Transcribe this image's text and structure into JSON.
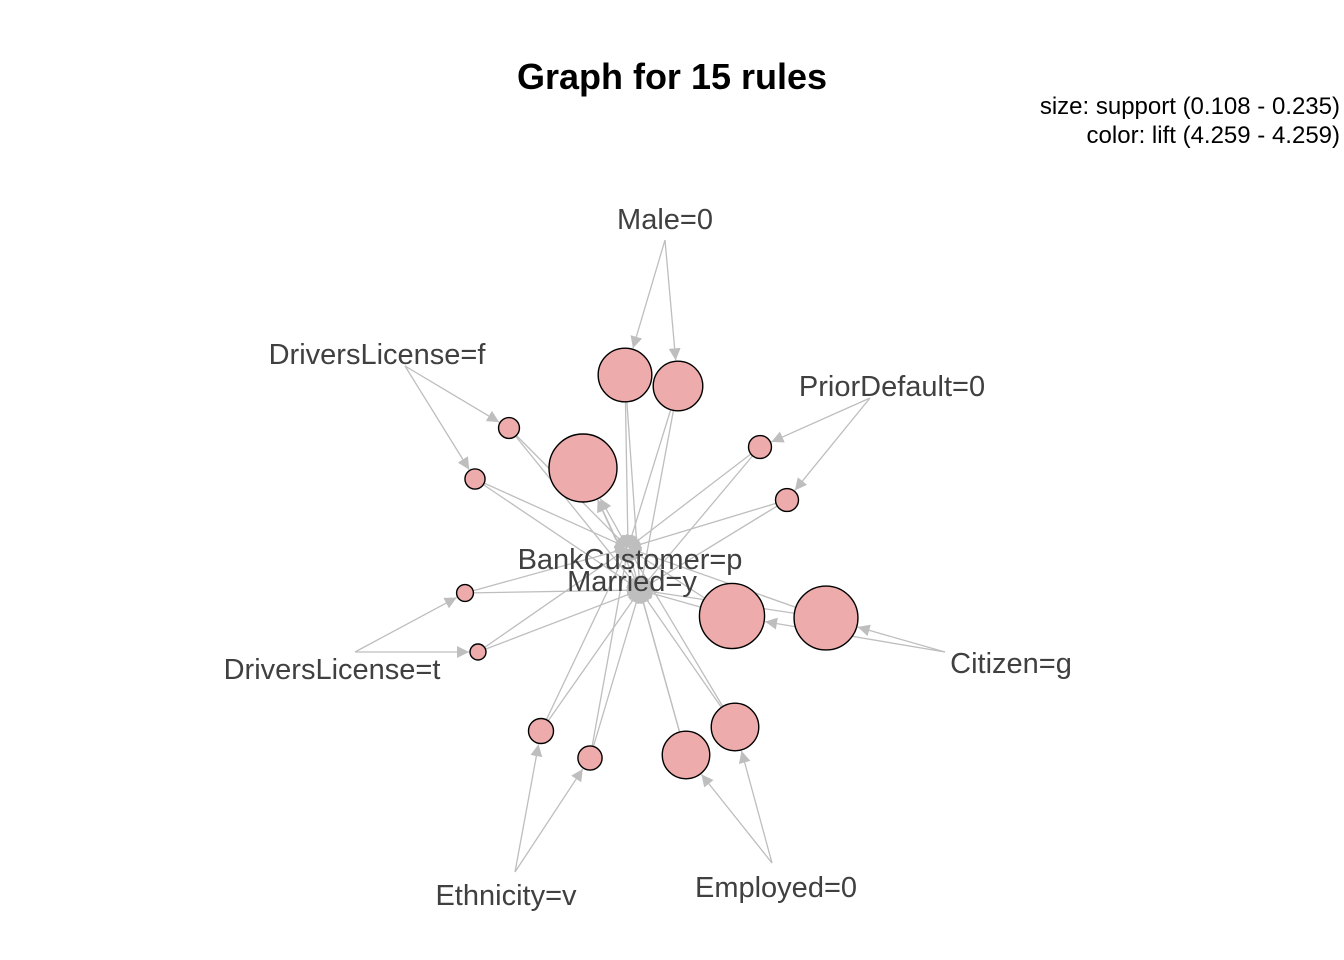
{
  "title": "Graph for 15 rules",
  "legend": {
    "size": "size: support (0.108 - 0.235)",
    "color": "color: lift (4.259 - 4.259)"
  },
  "colors": {
    "node_fill": "#eeabab",
    "node_stroke": "#000000",
    "edge": "#bebebe",
    "label": "#404040"
  },
  "items": [
    {
      "id": "male0",
      "label": "Male=0"
    },
    {
      "id": "dlf",
      "label": "DriversLicense=f"
    },
    {
      "id": "prior0",
      "label": "PriorDefault=0"
    },
    {
      "id": "bankp",
      "label": "BankCustomer=p"
    },
    {
      "id": "marriedy",
      "label": "Married=y"
    },
    {
      "id": "dlt",
      "label": "DriversLicense=t"
    },
    {
      "id": "citizeng",
      "label": "Citizen=g"
    },
    {
      "id": "ethv",
      "label": "Ethnicity=v"
    },
    {
      "id": "emp0",
      "label": "Employed=0"
    }
  ],
  "rules": [
    {
      "id": "r1",
      "support": 0.2,
      "lhs": [
        "male0"
      ],
      "rhs": [
        "bankp",
        "marriedy"
      ]
    },
    {
      "id": "r2",
      "support": 0.19,
      "lhs": [
        "male0"
      ],
      "rhs": [
        "bankp",
        "marriedy"
      ]
    },
    {
      "id": "r3",
      "support": 0.12,
      "lhs": [
        "dlf"
      ],
      "rhs": [
        "bankp",
        "marriedy"
      ]
    },
    {
      "id": "r4",
      "support": 0.118,
      "lhs": [
        "dlf"
      ],
      "rhs": [
        "bankp",
        "marriedy"
      ]
    },
    {
      "id": "r5",
      "support": 0.235,
      "lhs": [
        "bankp",
        "marriedy"
      ],
      "rhs": []
    },
    {
      "id": "r6",
      "support": 0.125,
      "lhs": [
        "prior0"
      ],
      "rhs": [
        "bankp",
        "marriedy"
      ]
    },
    {
      "id": "r7",
      "support": 0.125,
      "lhs": [
        "prior0"
      ],
      "rhs": [
        "bankp",
        "marriedy"
      ]
    },
    {
      "id": "r8",
      "support": 0.228,
      "lhs": [
        "citizeng"
      ],
      "rhs": [
        "bankp",
        "marriedy"
      ]
    },
    {
      "id": "r9",
      "support": 0.225,
      "lhs": [
        "citizeng"
      ],
      "rhs": [
        "bankp",
        "marriedy"
      ]
    },
    {
      "id": "r10",
      "support": 0.11,
      "lhs": [
        "dlt"
      ],
      "rhs": [
        "bankp",
        "marriedy"
      ]
    },
    {
      "id": "r11",
      "support": 0.108,
      "lhs": [
        "dlt"
      ],
      "rhs": [
        "bankp",
        "marriedy"
      ]
    },
    {
      "id": "r12",
      "support": 0.13,
      "lhs": [
        "ethv"
      ],
      "rhs": [
        "bankp",
        "marriedy"
      ]
    },
    {
      "id": "r13",
      "support": 0.128,
      "lhs": [
        "ethv"
      ],
      "rhs": [
        "bankp",
        "marriedy"
      ]
    },
    {
      "id": "r14",
      "support": 0.185,
      "lhs": [
        "emp0"
      ],
      "rhs": [
        "bankp",
        "marriedy"
      ]
    },
    {
      "id": "r15",
      "support": 0.185,
      "lhs": [
        "emp0"
      ],
      "rhs": [
        "bankp",
        "marriedy"
      ]
    }
  ]
}
